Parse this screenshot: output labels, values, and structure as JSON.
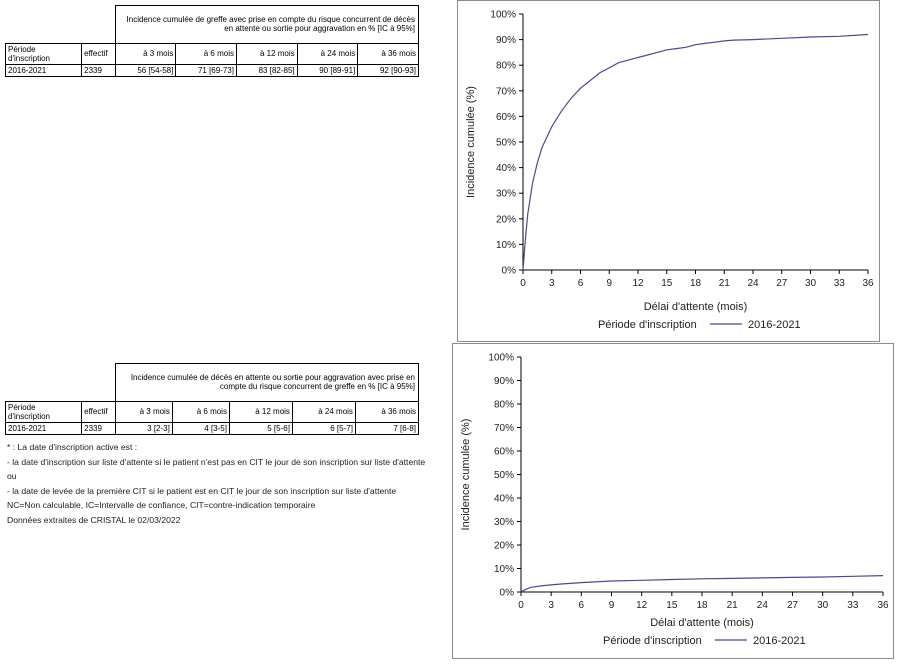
{
  "table1": {
    "header": "Incidence cumulée de greffe avec prise en compte du risque concurrent de décès en attente ou sortie pour aggravation en % [IC à 95%]",
    "col_period": "Période d'inscription",
    "col_effectif": "effectif",
    "col_3": "à 3 mois",
    "col_6": "à 6 mois",
    "col_12": "à 12 mois",
    "col_24": "à 24 mois",
    "col_36": "à 36 mois",
    "row": {
      "period": "2016-2021",
      "effectif": "2339",
      "v3": "56 [54-58]",
      "v6": "71 [69-73]",
      "v12": "83 [82-85]",
      "v24": "90 [89-91]",
      "v36": "92 [90-93]"
    }
  },
  "table2": {
    "header": "Incidence cumulée de décès en attente ou sortie pour aggravation avec prise en compte du risque concurrent de greffe en % [IC à 95%]",
    "col_period": "Période d'inscription",
    "col_effectif": "effectif",
    "col_3": "à 3 mois",
    "col_6": "à 6 mois",
    "col_12": "à 12 mois",
    "col_24": "à 24 mois",
    "col_36": "à 36 mois",
    "row": {
      "period": "2016-2021",
      "effectif": "2339",
      "v3": "3 [2-3]",
      "v6": "4 [3-5]",
      "v12": "5 [5-6]",
      "v24": "6 [5-7]",
      "v36": "7 [6-8]"
    }
  },
  "notes": [
    "* : La date d'inscription active est :",
    "- la date d'inscription sur liste d'attente si le patient n'est pas en CIT le jour de son inscription sur liste d'attente",
    "ou",
    "- la date de levée de la première CIT si le patient est en CIT le jour de son inscription sur liste d'attente",
    "NC=Non calculable, IC=Intervalle de confiance, CIT=contre-indication temporaire",
    "Données extraites de CRISTAL le 02/03/2022"
  ],
  "colors": {
    "series": "#4b4a8f",
    "axis": "#000000",
    "frame": "#8c8c8c"
  },
  "chart_data": [
    {
      "type": "line",
      "xlabel": "Délai d'attente (mois)",
      "ylabel": "Incidence cumulée (%)",
      "xlim": [
        0,
        36
      ],
      "ylim": [
        0,
        100
      ],
      "xticks": [
        0,
        3,
        6,
        9,
        12,
        15,
        18,
        21,
        24,
        27,
        30,
        33,
        36
      ],
      "yticks": [
        "0%",
        "10%",
        "20%",
        "30%",
        "40%",
        "50%",
        "60%",
        "70%",
        "80%",
        "90%",
        "100%"
      ],
      "legend_title": "Période d'inscription",
      "legend_placement": "bottom",
      "grid": false,
      "series": [
        {
          "name": "2016-2021",
          "x": [
            0,
            0.25,
            0.5,
            1,
            1.5,
            2,
            3,
            4,
            5,
            6,
            7,
            8,
            9,
            10,
            11,
            12,
            13,
            14,
            15,
            16,
            17,
            18,
            19,
            20,
            21,
            22,
            24,
            27,
            30,
            33,
            36
          ],
          "y": [
            0,
            12,
            22,
            34,
            42,
            48,
            56,
            62,
            67,
            71,
            74,
            77,
            79,
            81,
            82,
            83,
            84,
            85,
            86,
            86.5,
            87,
            88,
            88.5,
            89,
            89.5,
            89.8,
            90,
            90.5,
            91,
            91.3,
            92
          ]
        }
      ]
    },
    {
      "type": "line",
      "xlabel": "Délai d'attente (mois)",
      "ylabel": "Incidence cumulée (%)",
      "xlim": [
        0,
        36
      ],
      "ylim": [
        0,
        100
      ],
      "xticks": [
        0,
        3,
        6,
        9,
        12,
        15,
        18,
        21,
        24,
        27,
        30,
        33,
        36
      ],
      "yticks": [
        "0%",
        "10%",
        "20%",
        "30%",
        "40%",
        "50%",
        "60%",
        "70%",
        "80%",
        "90%",
        "100%"
      ],
      "legend_title": "Période d'inscription",
      "legend_placement": "bottom",
      "grid": false,
      "series": [
        {
          "name": "2016-2021",
          "x": [
            0,
            0.5,
            1,
            2,
            3,
            4,
            6,
            9,
            12,
            15,
            18,
            21,
            24,
            27,
            30,
            33,
            36
          ],
          "y": [
            0,
            1.2,
            2,
            2.6,
            3,
            3.4,
            4,
            4.7,
            5,
            5.3,
            5.6,
            5.8,
            6,
            6.2,
            6.4,
            6.7,
            7
          ]
        }
      ]
    }
  ]
}
